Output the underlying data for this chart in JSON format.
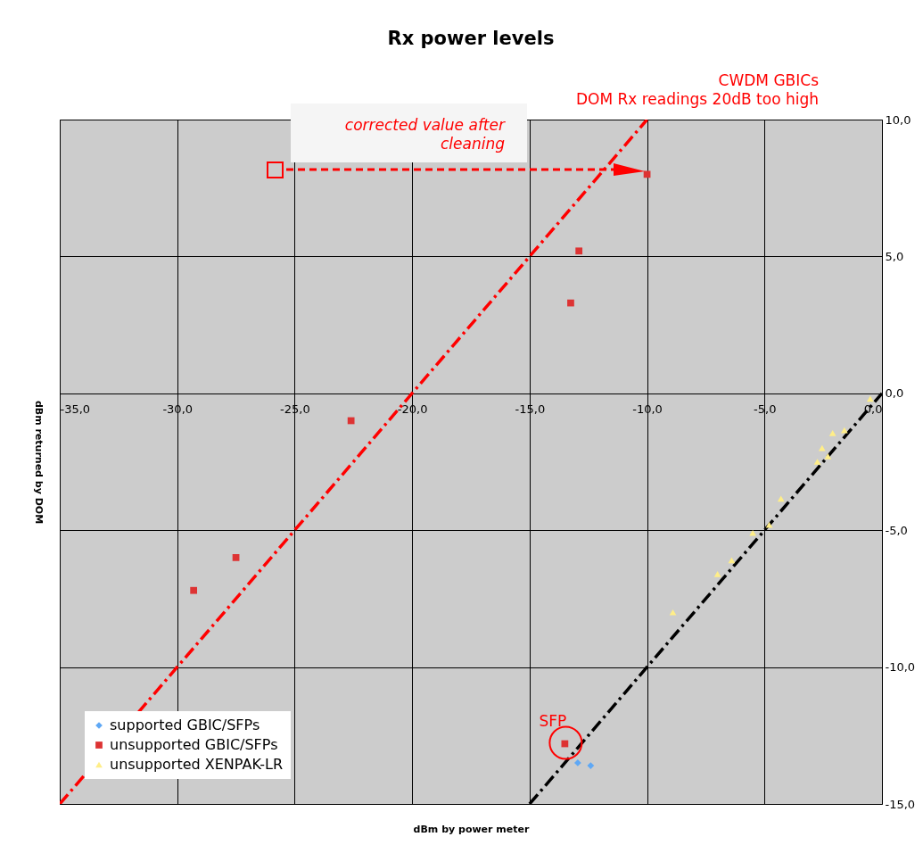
{
  "chart_data": {
    "type": "scatter",
    "title": "Rx power levels",
    "xlabel": "dBm by power meter",
    "ylabel": "dBm returned by DOM",
    "xlim": [
      -35,
      0
    ],
    "ylim": [
      -15,
      10
    ],
    "xticks": [
      {
        "value": -35,
        "label": "-35,0"
      },
      {
        "value": -30,
        "label": "-30,0"
      },
      {
        "value": -25,
        "label": "-25,0"
      },
      {
        "value": -20,
        "label": "-20,0"
      },
      {
        "value": -15,
        "label": "-15,0"
      },
      {
        "value": -10,
        "label": "-10,0"
      },
      {
        "value": -5,
        "label": "-5,0"
      },
      {
        "value": 0,
        "label": "0,0"
      }
    ],
    "yticks": [
      {
        "value": -15,
        "label": "-15,0"
      },
      {
        "value": -10,
        "label": "-10,0"
      },
      {
        "value": -5,
        "label": "-5,0"
      },
      {
        "value": 0,
        "label": "0,0"
      },
      {
        "value": 5,
        "label": "5,0"
      },
      {
        "value": 10,
        "label": "10,0"
      }
    ],
    "grid": true,
    "legend": "bottom left",
    "series": [
      {
        "name": "supported GBIC/SFPs",
        "color": "#5fa8f5",
        "marker": "diamond",
        "x": [
          -12.95,
          -12.4
        ],
        "values": [
          -13.5,
          -13.6
        ]
      },
      {
        "name": "unsupported GBIC/SFPs",
        "color": "#dd3333",
        "marker": "square",
        "x": [
          -10,
          -12.9,
          -13.25,
          -22.6,
          -27.5,
          -29.3,
          -13.5
        ],
        "values": [
          8.0,
          5.2,
          3.3,
          -1.0,
          -6.0,
          -7.2,
          -12.8
        ]
      },
      {
        "name": "unsupported XENPAK-LR",
        "color": "#ffee88",
        "marker": "triangle",
        "x": [
          -0.5,
          -1.6,
          -2.1,
          -2.55,
          -2.3,
          -2.75,
          -4.3,
          -4.8,
          -5.5,
          -6.4,
          -7.0,
          -8.9
        ],
        "values": [
          -0.2,
          -1.35,
          -1.45,
          -2.0,
          -2.3,
          -2.5,
          -3.85,
          -4.8,
          -5.1,
          -6.1,
          -6.6,
          -8.0
        ]
      },
      {
        "type": "line",
        "color": "#ff0000",
        "line_style": "dashed",
        "x": [
          -35,
          -10
        ],
        "values": [
          -15,
          10
        ]
      },
      {
        "type": "line",
        "color": "#000000",
        "line_style": "dashed",
        "x": [
          -15,
          0
        ],
        "values": [
          -15,
          0
        ]
      }
    ],
    "annotations": [
      "corrected value after\ncleaning",
      "CWDM GBICs\nDOM Rx readings 20dB too high",
      {
        "text": "SFP",
        "x": -13.5,
        "y": -12.8
      }
    ]
  }
}
